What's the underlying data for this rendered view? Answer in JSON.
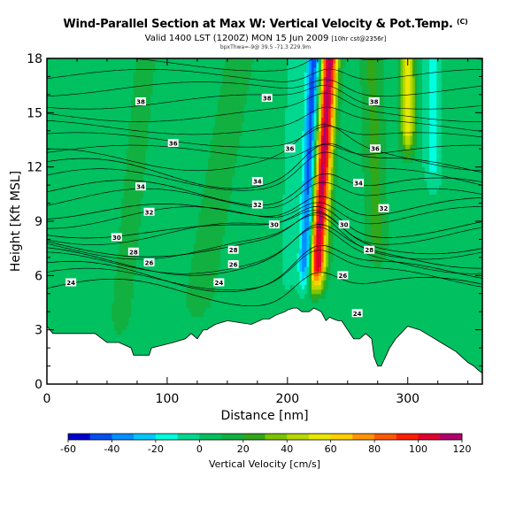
{
  "title": {
    "line1": "Wind-Parallel Section at Max W: Vertical Velocity & Pot.Temp.",
    "line1_suffix": "(C)",
    "line2": "Valid 1400 LST (1200Z) MON 15 Jun 2009",
    "line2_suffix": "[10hr cst@2356r]",
    "line3": "bpxThwa=-9@ 39.5 -71.3 Z29.9m"
  },
  "colors": {
    "terrain": "#ffffff",
    "contour": "#000000",
    "frame": "#000000"
  },
  "chart_data": {
    "type": "heatmap",
    "xlabel": "Distance [nm]",
    "ylabel": "Height [Kft MSL]",
    "xlim": [
      0,
      362
    ],
    "ylim": [
      0,
      18
    ],
    "xticks": [
      0,
      100,
      200,
      300
    ],
    "yticks": [
      0,
      3,
      6,
      9,
      12,
      15,
      18
    ],
    "colorbar": {
      "label": "Vertical Velocity [cm/s]",
      "ticks": [
        -60,
        -40,
        -20,
        0,
        20,
        40,
        60,
        80,
        100,
        120
      ],
      "bins": [
        -60,
        -50,
        -40,
        -30,
        -20,
        -10,
        0,
        10,
        20,
        30,
        40,
        50,
        60,
        70,
        80,
        90,
        100,
        110,
        120
      ],
      "colors": [
        "#0000d0",
        "#0050f0",
        "#0090ff",
        "#00c8ff",
        "#00ffe0",
        "#00d890",
        "#00c060",
        "#12b040",
        "#30a81a",
        "#7cc400",
        "#b8d800",
        "#e8e800",
        "#ffd000",
        "#ff9600",
        "#ff5a00",
        "#ff2000",
        "#e00030",
        "#b00070"
      ]
    },
    "background_w_cms": 5,
    "updrafts": [
      {
        "x_at_top": 235,
        "x_at_6kft": 224,
        "halfwidth_nm": 5,
        "peak_w_cms": 108,
        "bottom_kft": 4.5
      },
      {
        "x_at_top": 300,
        "x_at_6kft": 300,
        "halfwidth_nm": 4,
        "peak_w_cms": 55,
        "bottom_kft": 12
      },
      {
        "x_at_top": 160,
        "x_at_6kft": 130,
        "halfwidth_nm": 8,
        "peak_w_cms": 14,
        "bottom_kft": 3
      },
      {
        "x_at_top": 82,
        "x_at_6kft": 65,
        "halfwidth_nm": 6,
        "peak_w_cms": 12,
        "bottom_kft": 2
      },
      {
        "x_at_top": 270,
        "x_at_6kft": 275,
        "halfwidth_nm": 6,
        "peak_w_cms": 18,
        "bottom_kft": 6
      }
    ],
    "downdrafts": [
      {
        "x_at_top": 222,
        "x_at_6kft": 215,
        "halfwidth_nm": 4,
        "peak_w_cms": -55,
        "bottom_kft": 4.5
      },
      {
        "x_at_top": 320,
        "x_at_6kft": 322,
        "halfwidth_nm": 5,
        "peak_w_cms": -18,
        "bottom_kft": 10
      },
      {
        "x_at_top": 205,
        "x_at_6kft": 200,
        "halfwidth_nm": 5,
        "peak_w_cms": -8,
        "bottom_kft": 4
      }
    ],
    "terrain_kft": {
      "x": [
        0,
        5,
        20,
        40,
        50,
        60,
        70,
        72,
        85,
        87,
        105,
        115,
        120,
        125,
        130,
        133,
        135,
        140,
        150,
        160,
        170,
        180,
        185,
        190,
        198,
        200,
        205,
        208,
        212,
        215,
        218,
        222,
        225,
        228,
        232,
        235,
        238,
        242,
        245,
        250,
        255,
        260,
        265,
        270,
        272,
        275,
        278,
        280,
        285,
        290,
        300,
        310,
        320,
        330,
        340,
        350,
        355,
        358,
        362
      ],
      "y": [
        3.2,
        2.8,
        2.8,
        2.8,
        2.3,
        2.3,
        2.0,
        1.6,
        1.6,
        2.0,
        2.3,
        2.5,
        2.8,
        2.5,
        3.0,
        3.0,
        3.1,
        3.3,
        3.5,
        3.4,
        3.3,
        3.6,
        3.6,
        3.8,
        4.0,
        4.1,
        4.2,
        4.2,
        4.0,
        4.0,
        4.0,
        4.2,
        4.1,
        4.0,
        3.5,
        3.7,
        3.6,
        3.5,
        3.5,
        3.0,
        2.5,
        2.5,
        2.8,
        2.5,
        1.5,
        1.0,
        1.0,
        1.3,
        2.0,
        2.5,
        3.2,
        3.0,
        2.6,
        2.2,
        1.8,
        1.2,
        1.0,
        0.8,
        0.6
      ]
    },
    "isentropes": {
      "values": [
        24,
        26,
        28,
        30,
        32,
        34,
        36,
        38
      ],
      "heights_kft": [
        5.3,
        6.2,
        7.0,
        7.8,
        8.7,
        9.7,
        10.8,
        11.9
      ],
      "uplift_at_updraft_kft": 1.4
    },
    "contour_labels": [
      {
        "text": "38",
        "x": 78,
        "y": 15.6
      },
      {
        "text": "38",
        "x": 183,
        "y": 15.8
      },
      {
        "text": "38",
        "x": 272,
        "y": 15.6
      },
      {
        "text": "36",
        "x": 105,
        "y": 13.3
      },
      {
        "text": "36",
        "x": 202,
        "y": 13.0
      },
      {
        "text": "36",
        "x": 273,
        "y": 13.0
      },
      {
        "text": "34",
        "x": 78,
        "y": 10.9
      },
      {
        "text": "34",
        "x": 175,
        "y": 11.2
      },
      {
        "text": "34",
        "x": 259,
        "y": 11.1
      },
      {
        "text": "32",
        "x": 85,
        "y": 9.5
      },
      {
        "text": "32",
        "x": 175,
        "y": 9.9
      },
      {
        "text": "32",
        "x": 280,
        "y": 9.7
      },
      {
        "text": "30",
        "x": 58,
        "y": 8.1
      },
      {
        "text": "30",
        "x": 189,
        "y": 8.8
      },
      {
        "text": "30",
        "x": 247,
        "y": 8.8
      },
      {
        "text": "28",
        "x": 72,
        "y": 7.3
      },
      {
        "text": "28",
        "x": 155,
        "y": 7.4
      },
      {
        "text": "28",
        "x": 268,
        "y": 7.4
      },
      {
        "text": "26",
        "x": 85,
        "y": 6.7
      },
      {
        "text": "26",
        "x": 155,
        "y": 6.6
      },
      {
        "text": "26",
        "x": 246,
        "y": 6.0
      },
      {
        "text": "24",
        "x": 20,
        "y": 5.6
      },
      {
        "text": "24",
        "x": 143,
        "y": 5.6
      },
      {
        "text": "24",
        "x": 258,
        "y": 3.9
      }
    ]
  }
}
